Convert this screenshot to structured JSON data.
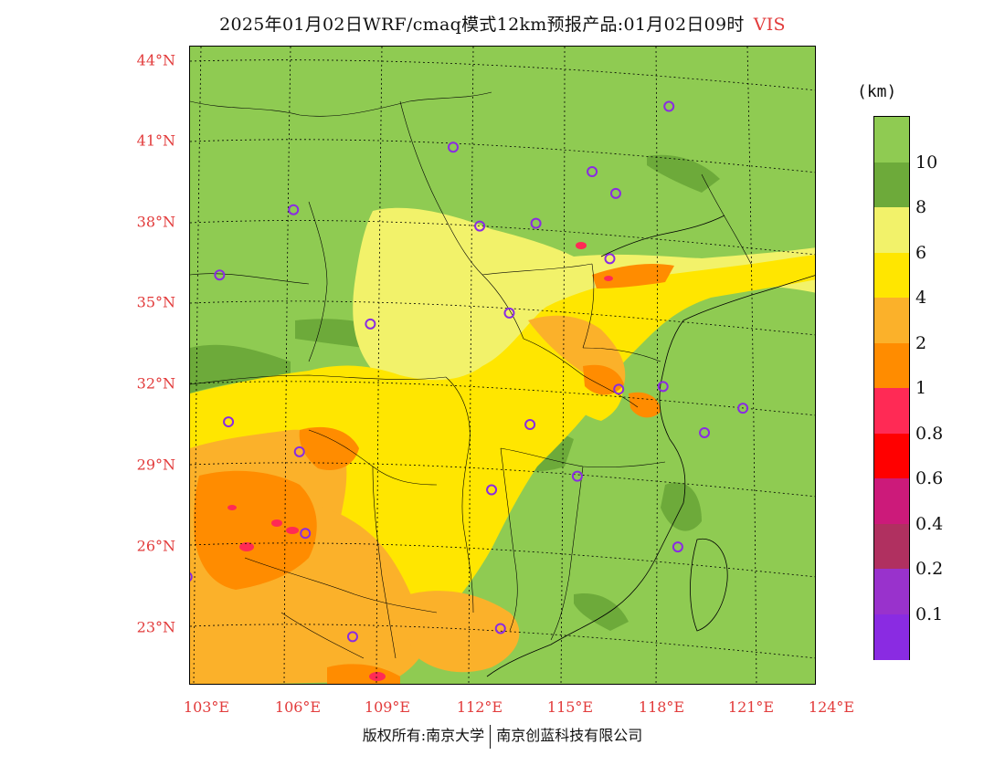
{
  "title": {
    "main": "2025年01月02日WRF/cmaq模式12km预报产品:01月02日09时",
    "variable": "VIS"
  },
  "map": {
    "lat_labels": [
      "44°N",
      "41°N",
      "38°N",
      "35°N",
      "32°N",
      "29°N",
      "26°N",
      "23°N"
    ],
    "lon_labels": [
      "103°E",
      "106°E",
      "109°E",
      "112°E",
      "115°E",
      "118°E",
      "121°E",
      "124°E"
    ],
    "extent": {
      "lon_min": 102.8,
      "lon_max": 124,
      "lat_min": 21,
      "lat_max": 44.5
    },
    "fill_colors": {
      "gt10": "#8fcb52",
      "8_10": "#6daa3a",
      "6_8": "#f2f26a",
      "4_6": "#ffe600",
      "2_4": "#fbb12a",
      "1_2": "#ff8c00",
      "lt1": "#ff2a55"
    },
    "city_markers": [
      {
        "lon": 119.0,
        "lat": 42.3
      },
      {
        "lon": 111.7,
        "lat": 40.8
      },
      {
        "lon": 116.4,
        "lat": 39.9
      },
      {
        "lon": 117.2,
        "lat": 39.1
      },
      {
        "lon": 106.3,
        "lat": 38.5
      },
      {
        "lon": 112.6,
        "lat": 37.9
      },
      {
        "lon": 114.5,
        "lat": 38.0
      },
      {
        "lon": 117.0,
        "lat": 36.7
      },
      {
        "lon": 103.8,
        "lat": 36.1
      },
      {
        "lon": 108.9,
        "lat": 34.3
      },
      {
        "lon": 113.6,
        "lat": 34.7
      },
      {
        "lon": 117.3,
        "lat": 31.9
      },
      {
        "lon": 118.8,
        "lat": 32.0
      },
      {
        "lon": 121.5,
        "lat": 31.2
      },
      {
        "lon": 120.2,
        "lat": 30.3
      },
      {
        "lon": 114.3,
        "lat": 30.6
      },
      {
        "lon": 106.5,
        "lat": 29.6
      },
      {
        "lon": 104.1,
        "lat": 30.7
      },
      {
        "lon": 115.9,
        "lat": 28.7
      },
      {
        "lon": 113.0,
        "lat": 28.2
      },
      {
        "lon": 106.7,
        "lat": 26.6
      },
      {
        "lon": 119.3,
        "lat": 26.1
      },
      {
        "lon": 102.7,
        "lat": 25.0
      },
      {
        "lon": 108.3,
        "lat": 22.8
      },
      {
        "lon": 113.3,
        "lat": 23.1
      }
    ]
  },
  "legend": {
    "unit": "(km)",
    "colors": [
      "#8fcb52",
      "#6daa3a",
      "#f2f26a",
      "#ffe600",
      "#fbb12a",
      "#ff8c00",
      "#ff2a55",
      "#ff0000",
      "#cc1a7a",
      "#b03060",
      "#9932cc",
      "#8a2be2"
    ],
    "ticks": [
      "10",
      "8",
      "6",
      "4",
      "2",
      "1",
      "0.8",
      "0.6",
      "0.4",
      "0.2",
      "0.1"
    ]
  },
  "credit": {
    "left": "版权所有:南京大学",
    "right": "南京创蓝科技有限公司"
  }
}
